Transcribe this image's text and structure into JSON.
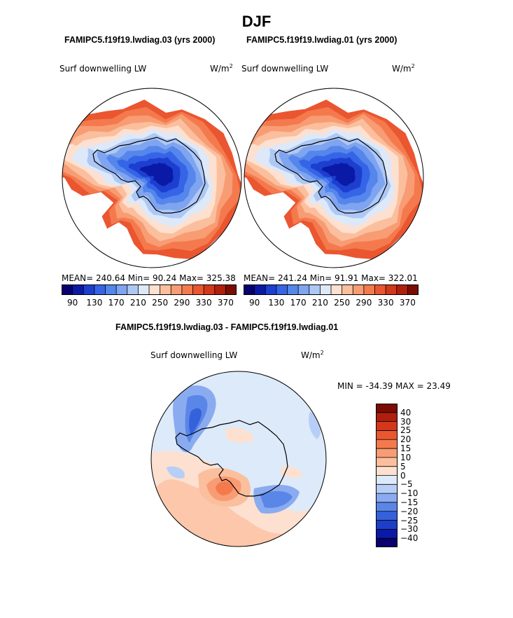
{
  "title": "DJF",
  "panels": [
    {
      "case_title": "FAMIPC5.f19f19.lwdiag.03 (yrs 2000)",
      "variable": "Surf downwelling LW",
      "units": "W/m",
      "units_sup": "2",
      "stats": "MEAN= 240.64   Min=   90.24   Max= 325.38"
    },
    {
      "case_title": "FAMIPC5.f19f19.lwdiag.01 (yrs 2000)",
      "variable": "Surf downwelling LW",
      "units": "W/m",
      "units_sup": "2",
      "stats": "MEAN= 241.24   Min=   91.91   Max= 322.01"
    }
  ],
  "diff_panel": {
    "case_title": "FAMIPC5.f19f19.lwdiag.03 - FAMIPC5.f19f19.lwdiag.01",
    "variable": "Surf downwelling LW",
    "units": "W/m",
    "units_sup": "2",
    "minmax": "MIN = -34.39  MAX =   23.49"
  },
  "abs_colorbar": {
    "colors": [
      "#08006e",
      "#0b1aa6",
      "#1d3fd0",
      "#3564e6",
      "#5486ec",
      "#7fa4f0",
      "#aec8f5",
      "#dde9f9",
      "#fde0cf",
      "#fbbf9e",
      "#f89c74",
      "#f47a4e",
      "#ea5630",
      "#d2381a",
      "#b01f0c",
      "#7a0c02"
    ],
    "labels": [
      "90",
      "130",
      "170",
      "210",
      "250",
      "290",
      "330",
      "370"
    ]
  },
  "diff_colorbar": {
    "colors": [
      "#7a0c02",
      "#b01f0c",
      "#d2381a",
      "#ea5630",
      "#f47a4e",
      "#f89c74",
      "#fbbf9e",
      "#fde0cf",
      "#ddeafa",
      "#b7cff6",
      "#8aabf0",
      "#5a86e8",
      "#3562db",
      "#1d3fc8",
      "#0b1aa6",
      "#08006e"
    ],
    "labels": [
      "40",
      "30",
      "25",
      "20",
      "15",
      "10",
      "5",
      "0",
      "−5",
      "−10",
      "−15",
      "−20",
      "−25",
      "−30",
      "−40"
    ]
  },
  "chart_data": [
    {
      "type": "heatmap",
      "title": "FAMIPC5.f19f19.lwdiag.03 (yrs 2000)",
      "variable": "Surf downwelling LW",
      "units": "W/m2",
      "projection": "south polar stereographic",
      "mean": 240.64,
      "min": 90.24,
      "max": 325.38,
      "contour_levels": [
        90,
        110,
        130,
        150,
        170,
        190,
        210,
        230,
        250,
        270,
        290,
        310,
        330,
        350,
        370
      ],
      "ring_levels_from_edge_to_pole": [
        310,
        290,
        270,
        250,
        230,
        210,
        190,
        170,
        150,
        130,
        110,
        90
      ]
    },
    {
      "type": "heatmap",
      "title": "FAMIPC5.f19f19.lwdiag.01 (yrs 2000)",
      "variable": "Surf downwelling LW",
      "units": "W/m2",
      "projection": "south polar stereographic",
      "mean": 241.24,
      "min": 91.91,
      "max": 322.01,
      "contour_levels": [
        90,
        110,
        130,
        150,
        170,
        190,
        210,
        230,
        250,
        270,
        290,
        310,
        330,
        350,
        370
      ],
      "ring_levels_from_edge_to_pole": [
        310,
        290,
        270,
        250,
        230,
        210,
        190,
        170,
        150,
        130,
        110,
        90
      ]
    },
    {
      "type": "heatmap",
      "title": "FAMIPC5.f19f19.lwdiag.03 - FAMIPC5.f19f19.lwdiag.01",
      "variable": "Surf downwelling LW",
      "units": "W/m2",
      "projection": "south polar stereographic",
      "min": -34.39,
      "max": 23.49,
      "contour_levels": [
        -40,
        -30,
        -25,
        -20,
        -15,
        -10,
        -5,
        0,
        5,
        10,
        15,
        20,
        25,
        30,
        40
      ]
    }
  ]
}
